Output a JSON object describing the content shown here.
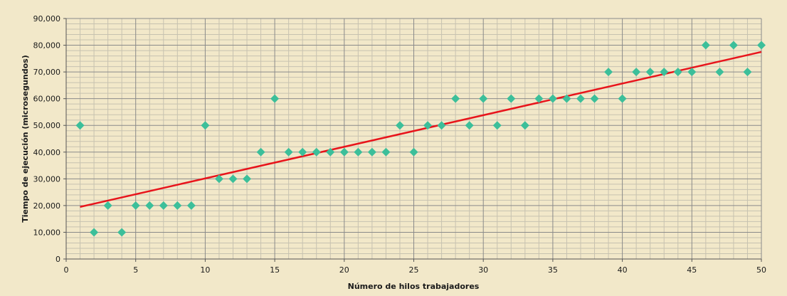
{
  "chart_data": {
    "type": "scatter",
    "xlabel": "Número de hilos trabajadores",
    "ylabel": "Tiempo de ejecución (microsegundos)",
    "xlim": [
      0,
      50
    ],
    "ylim": [
      0,
      90000
    ],
    "x_ticks": [
      0,
      5,
      10,
      15,
      20,
      25,
      30,
      35,
      40,
      45,
      50
    ],
    "x_tick_labels": [
      "0",
      "5",
      "10",
      "15",
      "20",
      "25",
      "30",
      "35",
      "40",
      "45",
      "50"
    ],
    "y_ticks": [
      0,
      10000,
      20000,
      30000,
      40000,
      50000,
      60000,
      70000,
      80000,
      90000
    ],
    "y_tick_labels": [
      "0",
      "10,000",
      "20,000",
      "30,000",
      "40,000",
      "50,000",
      "60,000",
      "70,000",
      "80,000",
      "90,000"
    ],
    "grid": true,
    "legend": "none",
    "colors": {
      "background": "#f2e8c9",
      "marker": "#3cbf9a",
      "trendline": "#e8141b",
      "grid_major": "#8a8a8a",
      "grid_minor": "#c7c2b0"
    },
    "series": [
      {
        "marker": "diamond",
        "x": [
          1,
          2,
          3,
          4,
          5,
          6,
          7,
          8,
          9,
          10,
          11,
          12,
          13,
          14,
          15,
          16,
          17,
          18,
          19,
          20,
          21,
          22,
          23,
          24,
          25,
          26,
          27,
          28,
          29,
          30,
          31,
          32,
          33,
          34,
          35,
          36,
          37,
          38,
          39,
          40,
          41,
          42,
          43,
          44,
          45,
          46,
          47,
          48,
          49,
          50
        ],
        "y": [
          50000,
          10000,
          20000,
          10000,
          20000,
          20000,
          20000,
          20000,
          20000,
          50000,
          30000,
          30000,
          30000,
          40000,
          60000,
          40000,
          40000,
          40000,
          40000,
          40000,
          40000,
          40000,
          40000,
          50000,
          40000,
          50000,
          50000,
          60000,
          50000,
          60000,
          50000,
          60000,
          50000,
          60000,
          60000,
          60000,
          60000,
          60000,
          70000,
          60000,
          70000,
          70000,
          70000,
          70000,
          70000,
          80000,
          70000,
          80000,
          70000,
          80000
        ]
      }
    ],
    "trendline": {
      "type": "linear",
      "x": [
        1,
        50
      ],
      "y": [
        19500,
        77500
      ]
    }
  }
}
